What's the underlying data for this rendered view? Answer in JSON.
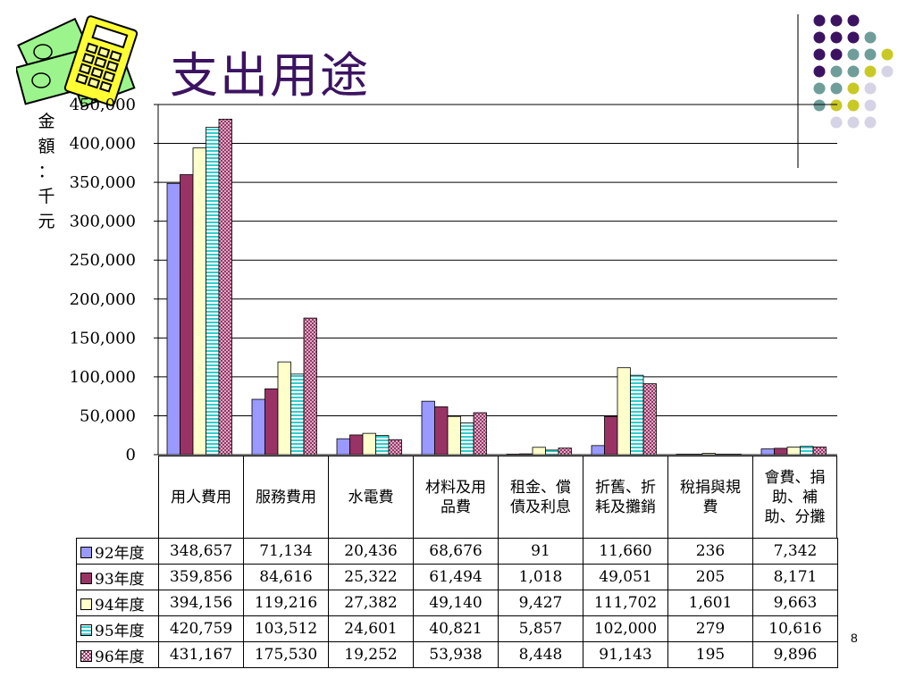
{
  "slide": {
    "title": "支出用途",
    "page_number": "8",
    "y_axis_label_chars": [
      "金",
      "額",
      "：",
      "千",
      "元"
    ]
  },
  "colors": {
    "title": "#3c1361",
    "decor_dots": [
      "#3c1361",
      "#6f9e9a",
      "#c9c926",
      "#d4d4e6"
    ]
  },
  "chart_data": {
    "type": "bar",
    "categories": [
      [
        "用人費用"
      ],
      [
        "服務費用"
      ],
      [
        "水電費"
      ],
      [
        "材料及用",
        "品費"
      ],
      [
        "租金、償",
        "債及利息"
      ],
      [
        "折舊、折",
        "耗及攤銷"
      ],
      [
        "稅捐與規",
        "費"
      ],
      [
        "會費、捐",
        "助、補",
        "助、分攤"
      ]
    ],
    "ylabel": "金額：千元",
    "ylim": [
      0,
      450000
    ],
    "yticks": [
      0,
      50000,
      100000,
      150000,
      200000,
      250000,
      300000,
      350000,
      400000,
      450000
    ],
    "ytick_labels": [
      "0",
      "50,000",
      "100,000",
      "150,000",
      "200,000",
      "250,000",
      "300,000",
      "350,000",
      "400,000",
      "450,000"
    ],
    "grid": true,
    "legend": "data-table",
    "series": [
      {
        "name": "92年度",
        "color": "#9999ff",
        "pattern": "solid",
        "values": [
          348657,
          71134,
          20436,
          68676,
          91,
          11660,
          236,
          7342
        ],
        "labels": [
          "348,657",
          "71,134",
          "20,436",
          "68,676",
          "91",
          "11,660",
          "236",
          "7,342"
        ]
      },
      {
        "name": "93年度",
        "color": "#993366",
        "pattern": "solid",
        "values": [
          359856,
          84616,
          25322,
          61494,
          1018,
          49051,
          205,
          8171
        ],
        "labels": [
          "359,856",
          "84,616",
          "25,322",
          "61,494",
          "1,018",
          "49,051",
          "205",
          "8,171"
        ]
      },
      {
        "name": "94年度",
        "color": "#ffffcc",
        "pattern": "solid",
        "values": [
          394156,
          119216,
          27382,
          49140,
          9427,
          111702,
          1601,
          9663
        ],
        "labels": [
          "394,156",
          "119,216",
          "27,382",
          "49,140",
          "9,427",
          "111,702",
          "1,601",
          "9,663"
        ]
      },
      {
        "name": "95年度",
        "color": "#33cccc",
        "pattern": "horizontal-stripes",
        "values": [
          420759,
          103512,
          24601,
          40821,
          5857,
          102000,
          279,
          10616
        ],
        "labels": [
          "420,759",
          "103,512",
          "24,601",
          "40,821",
          "5,857",
          "102,000",
          "279",
          "10,616"
        ]
      },
      {
        "name": "96年度",
        "color": "#993366",
        "pattern": "crosshatch",
        "values": [
          431167,
          175530,
          19252,
          53938,
          8448,
          91143,
          195,
          9896
        ],
        "labels": [
          "431,167",
          "175,530",
          "19,252",
          "53,938",
          "8,448",
          "91,143",
          "195",
          "9,896"
        ]
      }
    ]
  }
}
